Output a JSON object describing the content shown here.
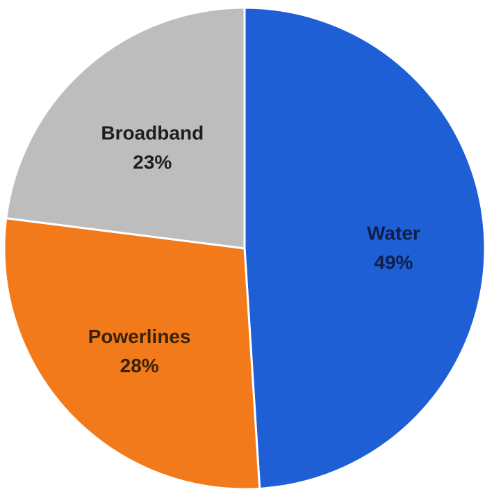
{
  "chart_data": {
    "type": "pie",
    "title": "",
    "slices": [
      {
        "label": "Water",
        "value": 49,
        "display": "49%",
        "color": "#1f5fd6",
        "label_color": "#0d1f4a"
      },
      {
        "label": "Powerlines",
        "value": 28,
        "display": "28%",
        "color": "#f27a1a",
        "label_color": "#3a2208"
      },
      {
        "label": "Broadband",
        "value": 23,
        "display": "23%",
        "color": "#bdbdbd",
        "label_color": "#1e1e1e"
      }
    ],
    "start_angle_deg": 0,
    "direction": "clockwise",
    "legend": "none",
    "data_labels": "inside"
  }
}
